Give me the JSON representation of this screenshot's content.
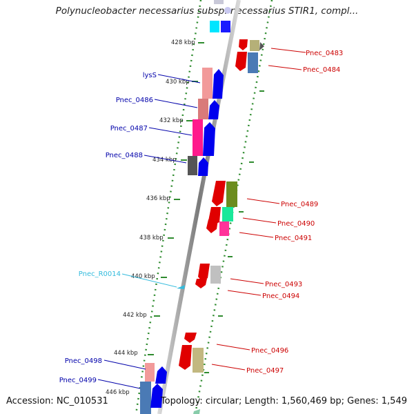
{
  "title": "Polynucleobacter necessarius subsp. necessarius STIR1, compl...",
  "footer": {
    "accession": "Accession: NC_010531",
    "summary": "Topology: circular; Length: 1,560,469 bp; Genes: 1,549"
  },
  "ruler_labels": [
    "428 kbp",
    "430 kbp",
    "432 kbp",
    "434 kbp",
    "436 kbp",
    "438 kbp",
    "440 kbp",
    "442 kbp",
    "444 kbp",
    "446 kbp"
  ],
  "colors": {
    "backbone": "#8c8c8c",
    "ruler": "#2e8b2e",
    "forward_label": "#0000aa",
    "reverse_label": "#cc0000",
    "rna_label": "#33bbdd"
  },
  "genes_left": [
    {
      "label": "lysS",
      "strand": "forward"
    },
    {
      "label": "Pnec_0486",
      "strand": "forward"
    },
    {
      "label": "Pnec_0487",
      "strand": "forward"
    },
    {
      "label": "Pnec_0488",
      "strand": "forward"
    },
    {
      "label": "Pnec_R0014",
      "strand": "rna"
    },
    {
      "label": "Pnec_0498",
      "strand": "forward"
    },
    {
      "label": "Pnec_0499",
      "strand": "forward"
    }
  ],
  "genes_right": [
    {
      "label": "Pnec_0483",
      "strand": "reverse"
    },
    {
      "label": "Pnec_0484",
      "strand": "reverse"
    },
    {
      "label": "Pnec_0489",
      "strand": "reverse"
    },
    {
      "label": "Pnec_0490",
      "strand": "reverse"
    },
    {
      "label": "Pnec_0491",
      "strand": "reverse"
    },
    {
      "label": "Pnec_0493",
      "strand": "reverse"
    },
    {
      "label": "Pnec_0494",
      "strand": "reverse"
    },
    {
      "label": "Pnec_0496",
      "strand": "reverse"
    },
    {
      "label": "Pnec_0497",
      "strand": "reverse"
    }
  ]
}
